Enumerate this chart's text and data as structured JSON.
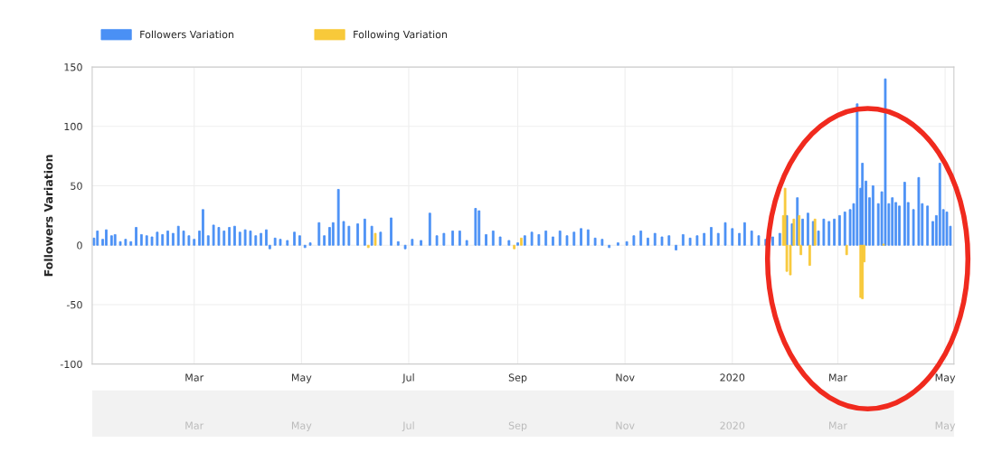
{
  "chart_data": {
    "type": "bar",
    "ylabel": "Followers Variation",
    "legend": "top left",
    "grid": true,
    "xlim": [
      "2019-01-02",
      "2020-05-06"
    ],
    "ylim": [
      -100,
      150
    ],
    "yticks": [
      -100,
      -50,
      0,
      50,
      100,
      150
    ],
    "xticks": [
      {
        "value": "2019-03-01",
        "label": "Mar"
      },
      {
        "value": "2019-05-01",
        "label": "May"
      },
      {
        "value": "2019-07-01",
        "label": "Jul"
      },
      {
        "value": "2019-09-01",
        "label": "Sep"
      },
      {
        "value": "2019-11-01",
        "label": "Nov"
      },
      {
        "value": "2020-01-01",
        "label": "2020"
      },
      {
        "value": "2020-03-01",
        "label": "Mar"
      },
      {
        "value": "2020-05-01",
        "label": "May"
      }
    ],
    "series": [
      {
        "name": "Followers Variation",
        "color": "#4a90f5",
        "x": [
          "2019-01-03",
          "2019-01-05",
          "2019-01-08",
          "2019-01-10",
          "2019-01-13",
          "2019-01-15",
          "2019-01-18",
          "2019-01-21",
          "2019-01-24",
          "2019-01-27",
          "2019-01-30",
          "2019-02-02",
          "2019-02-05",
          "2019-02-08",
          "2019-02-11",
          "2019-02-14",
          "2019-02-17",
          "2019-02-20",
          "2019-02-23",
          "2019-02-26",
          "2019-03-01",
          "2019-03-04",
          "2019-03-06",
          "2019-03-09",
          "2019-03-12",
          "2019-03-15",
          "2019-03-18",
          "2019-03-21",
          "2019-03-24",
          "2019-03-27",
          "2019-03-30",
          "2019-04-02",
          "2019-04-05",
          "2019-04-08",
          "2019-04-11",
          "2019-04-13",
          "2019-04-16",
          "2019-04-19",
          "2019-04-23",
          "2019-04-27",
          "2019-04-30",
          "2019-05-03",
          "2019-05-06",
          "2019-05-11",
          "2019-05-14",
          "2019-05-17",
          "2019-05-19",
          "2019-05-22",
          "2019-05-25",
          "2019-05-28",
          "2019-06-02",
          "2019-06-06",
          "2019-06-10",
          "2019-06-15",
          "2019-06-21",
          "2019-06-25",
          "2019-06-29",
          "2019-07-03",
          "2019-07-08",
          "2019-07-13",
          "2019-07-17",
          "2019-07-21",
          "2019-07-26",
          "2019-07-30",
          "2019-08-03",
          "2019-08-08",
          "2019-08-10",
          "2019-08-14",
          "2019-08-18",
          "2019-08-22",
          "2019-08-27",
          "2019-09-01",
          "2019-09-05",
          "2019-09-09",
          "2019-09-13",
          "2019-09-17",
          "2019-09-21",
          "2019-09-25",
          "2019-09-29",
          "2019-10-03",
          "2019-10-07",
          "2019-10-11",
          "2019-10-15",
          "2019-10-19",
          "2019-10-23",
          "2019-10-28",
          "2019-11-02",
          "2019-11-06",
          "2019-11-10",
          "2019-11-14",
          "2019-11-18",
          "2019-11-22",
          "2019-11-26",
          "2019-11-30",
          "2019-12-04",
          "2019-12-08",
          "2019-12-12",
          "2019-12-16",
          "2019-12-20",
          "2019-12-24",
          "2019-12-28",
          "2020-01-01",
          "2020-01-05",
          "2020-01-08",
          "2020-01-12",
          "2020-01-16",
          "2020-01-20",
          "2020-01-24",
          "2020-01-28",
          "2020-02-01",
          "2020-02-04",
          "2020-02-07",
          "2020-02-10",
          "2020-02-13",
          "2020-02-16",
          "2020-02-19",
          "2020-02-22",
          "2020-02-25",
          "2020-02-28",
          "2020-03-02",
          "2020-03-05",
          "2020-03-08",
          "2020-03-10",
          "2020-03-12",
          "2020-03-14",
          "2020-03-15",
          "2020-03-17",
          "2020-03-19",
          "2020-03-21",
          "2020-03-24",
          "2020-03-26",
          "2020-03-28",
          "2020-03-30",
          "2020-04-01",
          "2020-04-03",
          "2020-04-05",
          "2020-04-08",
          "2020-04-10",
          "2020-04-13",
          "2020-04-16",
          "2020-04-18",
          "2020-04-21",
          "2020-04-24",
          "2020-04-26",
          "2020-04-28",
          "2020-04-30",
          "2020-05-02",
          "2020-05-04"
        ],
        "values": [
          6,
          12,
          5,
          13,
          8,
          9,
          3,
          5,
          3,
          15,
          9,
          8,
          7,
          11,
          9,
          12,
          10,
          16,
          12,
          8,
          5,
          12,
          30,
          8,
          17,
          15,
          12,
          15,
          16,
          11,
          13,
          12,
          8,
          10,
          13,
          -3,
          6,
          5,
          4,
          11,
          8,
          -2,
          2,
          19,
          8,
          15,
          19,
          47,
          20,
          16,
          18,
          22,
          16,
          11,
          23,
          3,
          -3,
          5,
          4,
          27,
          8,
          10,
          12,
          12,
          4,
          31,
          29,
          9,
          12,
          7,
          4,
          2,
          8,
          11,
          9,
          12,
          7,
          12,
          8,
          11,
          14,
          13,
          6,
          5,
          -2,
          2,
          3,
          8,
          12,
          6,
          10,
          7,
          8,
          -4,
          9,
          6,
          8,
          10,
          15,
          10,
          19,
          14,
          10,
          19,
          12,
          8,
          5,
          7,
          10,
          25,
          18,
          40,
          22,
          27,
          20,
          12,
          22,
          20,
          22,
          25,
          28,
          30,
          35,
          119,
          48,
          69,
          54,
          40,
          50,
          35,
          45,
          140,
          35,
          40,
          36,
          33,
          53,
          36,
          30,
          57,
          35,
          33,
          20,
          25,
          69,
          30,
          28,
          16
        ]
      },
      {
        "name": "Following Variation",
        "color": "#f8c93a",
        "x": [
          "2019-06-08",
          "2019-06-12",
          "2019-08-30",
          "2019-09-03",
          "2020-01-30",
          "2020-01-31",
          "2020-02-01",
          "2020-02-03",
          "2020-02-05",
          "2020-02-08",
          "2020-02-09",
          "2020-02-14",
          "2020-02-17",
          "2020-03-06",
          "2020-03-14",
          "2020-03-15",
          "2020-03-16",
          "2020-03-27"
        ],
        "values": [
          -2,
          10,
          -3,
          6,
          25,
          48,
          -22,
          -25,
          22,
          25,
          -8,
          -17,
          22,
          -8,
          -44,
          -45,
          -14,
          1
        ]
      }
    ]
  }
}
